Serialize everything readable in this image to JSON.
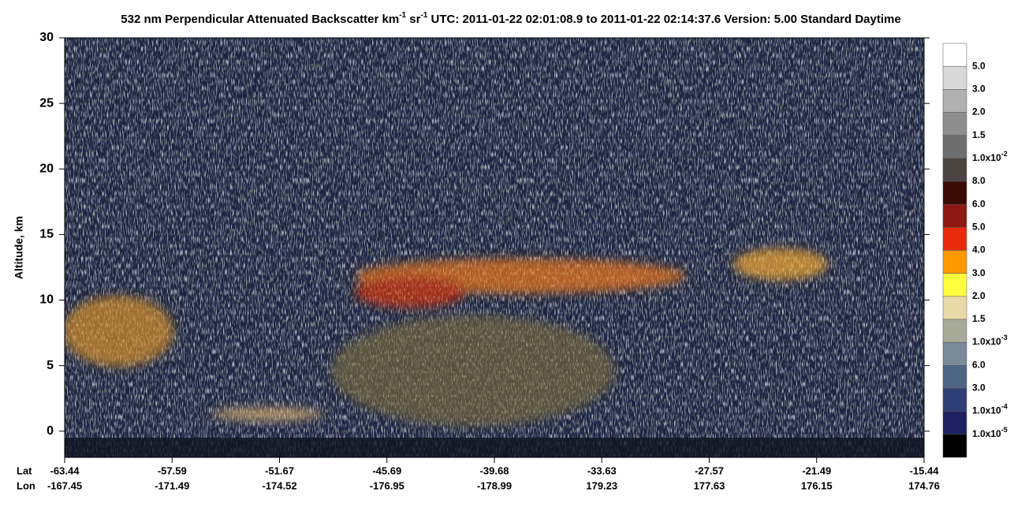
{
  "chart_data": {
    "type": "heatmap",
    "title": [
      "532 nm Perpendicular Attenuated Backscatter km",
      "-1",
      " sr",
      "-1",
      "  UTC: 2011-01-22 02:01:08.9 to 2011-01-22 02:14:37.6  Version: 5.00 Standard Daytime"
    ],
    "y_label": "Altitude, km",
    "ylim": [
      -2,
      30
    ],
    "yticks": [
      0,
      5,
      10,
      15,
      20,
      25,
      30
    ],
    "x_row_labels": [
      "Lat",
      "Lon"
    ],
    "lat": [
      -63.44,
      -57.59,
      -51.67,
      -45.69,
      -39.68,
      -33.63,
      -27.57,
      -21.49,
      -15.44
    ],
    "lon": [
      -167.45,
      -171.49,
      -174.52,
      -176.95,
      -178.99,
      179.23,
      177.63,
      176.15,
      174.76
    ],
    "colorbar": {
      "colors": [
        "#ffffff",
        "#d9d9d9",
        "#b0b0b0",
        "#8e8e8e",
        "#6e6e6e",
        "#4a4340",
        "#3a0a05",
        "#8c1a12",
        "#e82a0d",
        "#ff9900",
        "#ffff40",
        "#e8d9a8",
        "#a8aa98",
        "#7a8a99",
        "#4f6585",
        "#2e3f78",
        "#1e2260",
        "#000000"
      ],
      "labels": [
        "5.0",
        "3.0",
        "2.0",
        "1.5",
        [
          "1.0x10",
          "-2"
        ],
        "8.0",
        "6.0",
        "5.0",
        "4.0",
        "3.0",
        "2.0",
        "1.5",
        [
          "1.0x10",
          "-3"
        ],
        "6.0",
        "3.0",
        [
          "1.0x10",
          "-4"
        ],
        [
          "1.0x10",
          "-5"
        ]
      ]
    }
  }
}
